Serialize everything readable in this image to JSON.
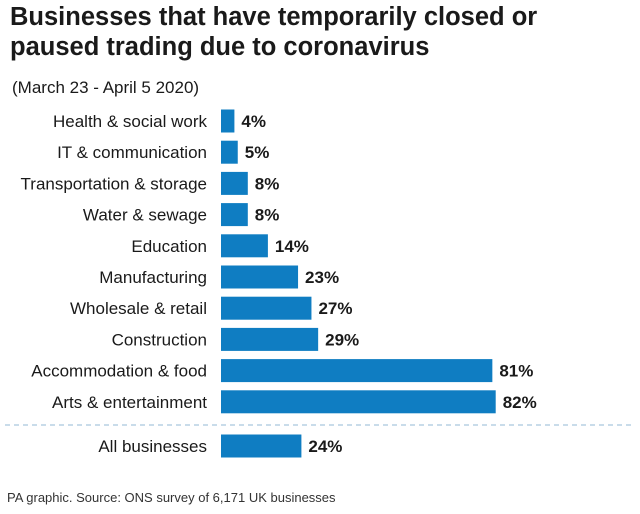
{
  "title": "Businesses that have temporarily closed or paused trading due to coronavirus",
  "subtitle": "(March 23 - April 5 2020)",
  "source": "PA graphic. Source: ONS survey of 6,171 UK businesses",
  "colors": {
    "bar": "#0f7dc2",
    "divider": "#a9c6de",
    "text": "#1a1a1a"
  },
  "chart_data": {
    "type": "bar",
    "orientation": "horizontal",
    "title": "Businesses that have temporarily closed or paused trading due to coronavirus",
    "subtitle": "(March 23 - April 5 2020)",
    "unit": "%",
    "categories": [
      "Health & social work",
      "IT & communication",
      "Transportation & storage",
      "Water & sewage",
      "Education",
      "Manufacturing",
      "Wholesale & retail",
      "Construction",
      "Accommodation & food",
      "Arts & entertainment"
    ],
    "values": [
      4,
      5,
      8,
      8,
      14,
      23,
      27,
      29,
      81,
      82
    ],
    "labels": [
      "4%",
      "5%",
      "8%",
      "8%",
      "14%",
      "23%",
      "27%",
      "29%",
      "81%",
      "82%"
    ],
    "total": {
      "category": "All businesses",
      "value": 24,
      "label": "24%"
    },
    "xlim": [
      0,
      100
    ],
    "grid": false,
    "legend": "none"
  }
}
